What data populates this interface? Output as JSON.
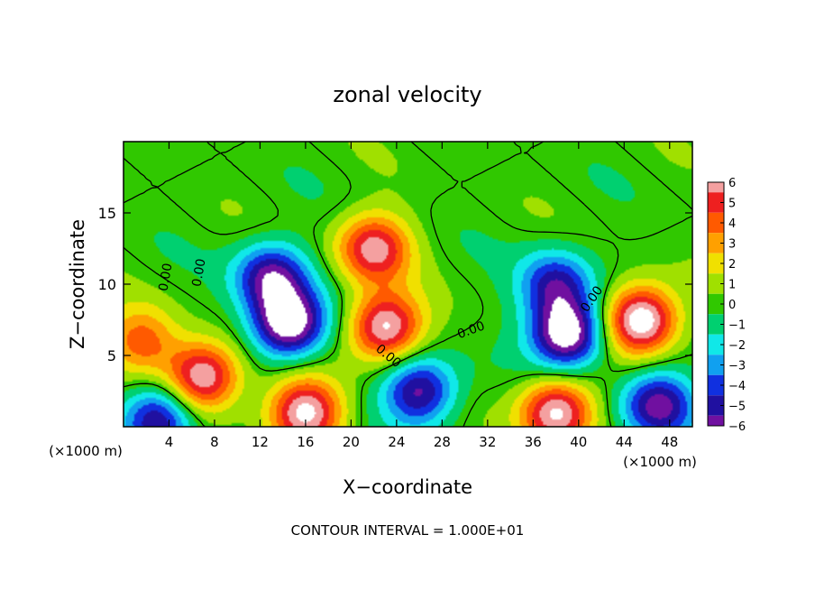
{
  "chart_data": {
    "type": "heatmap",
    "title": "zonal velocity",
    "xlabel": "X−coordinate",
    "ylabel": "Z−coordinate",
    "x_unit_label_left": "(×1000 m)",
    "x_unit_label_right": "(×1000 m)",
    "footer": "CONTOUR INTERVAL = 1.000E+01",
    "xlim": [
      0,
      50
    ],
    "ylim": [
      0,
      20
    ],
    "xticks": [
      4,
      8,
      12,
      16,
      20,
      24,
      28,
      32,
      36,
      40,
      44,
      48
    ],
    "xtick_labels": [
      "4",
      "8",
      "12",
      "16",
      "20",
      "24",
      "28",
      "32",
      "36",
      "40",
      "44",
      "48"
    ],
    "yticks": [
      5,
      10,
      15
    ],
    "ytick_labels": [
      "5",
      "10",
      "15"
    ],
    "colorbar": {
      "levels": [
        6,
        5,
        4,
        3,
        2,
        1,
        0,
        -1,
        -2,
        -3,
        -4,
        -5,
        -6
      ],
      "labels": [
        "6",
        "5",
        "4",
        "3",
        "2",
        "1",
        "0",
        "−1",
        "−2",
        "−3",
        "−4",
        "−5",
        "−6"
      ],
      "colors": [
        "#f4a0a0",
        "#ee2020",
        "#ff5a00",
        "#ffa000",
        "#f0e000",
        "#a0e000",
        "#30c800",
        "#00d070",
        "#10e8e8",
        "#10a0f0",
        "#1030e0",
        "#2010a0",
        "#7010a0"
      ]
    },
    "contour_labels": [
      "0.00",
      "0.00",
      "0.00",
      "0.00",
      "0.00"
    ],
    "features": [
      {
        "kind": "max",
        "x": 22,
        "z": 12.5,
        "value": 6
      },
      {
        "kind": "max",
        "x": 23,
        "z": 7,
        "value": 7
      },
      {
        "kind": "max",
        "x": 7,
        "z": 3.5,
        "value": 7
      },
      {
        "kind": "max",
        "x": 45.5,
        "z": 7.5,
        "value": 8
      },
      {
        "kind": "max",
        "x": 1.5,
        "z": 6,
        "value": 4
      },
      {
        "kind": "max",
        "x": 38,
        "z": 1,
        "value": 7
      },
      {
        "kind": "max",
        "x": 16,
        "z": 1,
        "value": 7
      },
      {
        "kind": "min",
        "x": 14.5,
        "z": 7.2,
        "value": -8
      },
      {
        "kind": "min",
        "x": 39,
        "z": 6.5,
        "value": -8
      },
      {
        "kind": "min",
        "x": 13,
        "z": 10.5,
        "value": -6
      },
      {
        "kind": "min",
        "x": 38,
        "z": 10,
        "value": -5
      },
      {
        "kind": "min",
        "x": 26,
        "z": 2.5,
        "value": -6
      },
      {
        "kind": "min",
        "x": 3,
        "z": 0.5,
        "value": -6
      },
      {
        "kind": "min",
        "x": 47,
        "z": 1.5,
        "value": -6
      }
    ]
  }
}
